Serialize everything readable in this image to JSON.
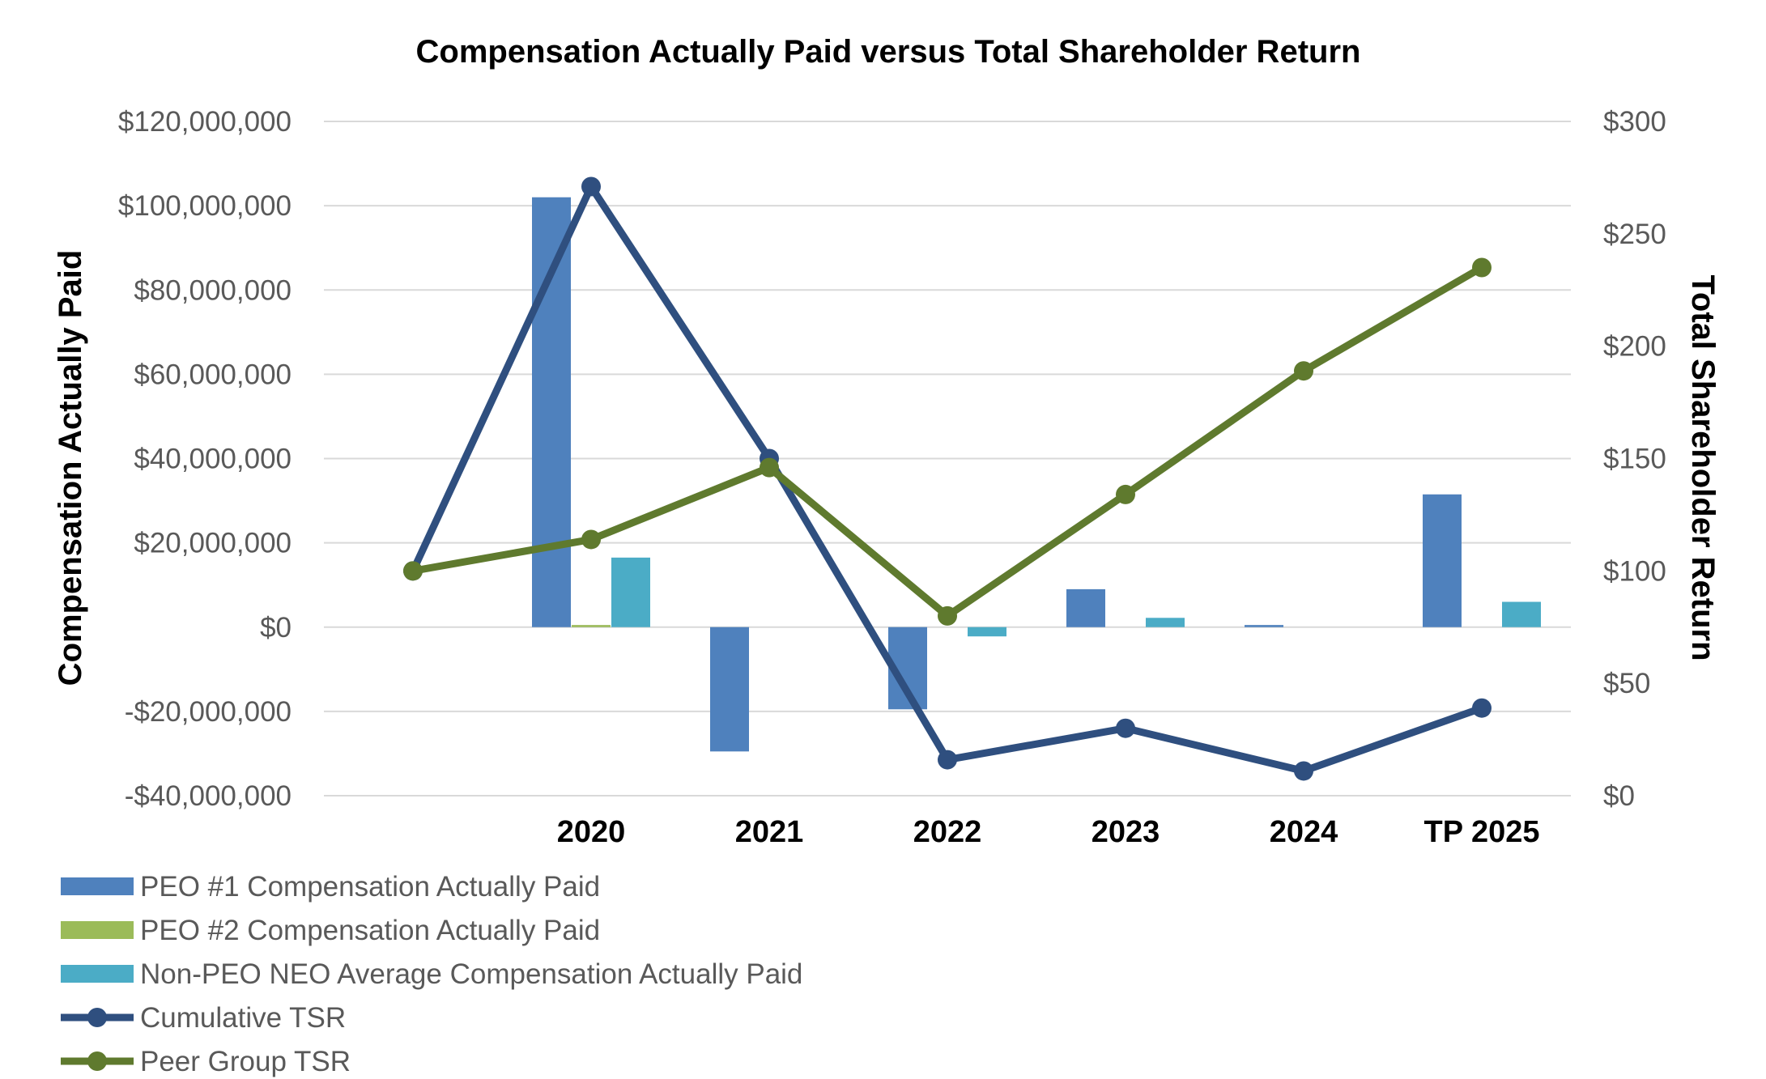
{
  "chart_data": {
    "type": "bar",
    "title": "Compensation Actually Paid versus Total Shareholder Return",
    "ylabel": "Compensation Actually Paid",
    "y2label": "Total Shareholder Return",
    "xlabel": "",
    "categories": [
      "",
      "2020",
      "2021",
      "2022",
      "2023",
      "2024",
      "TP 2025"
    ],
    "ylim": [
      -40000000,
      120000000
    ],
    "y2lim": [
      0,
      300
    ],
    "y_ticks": [
      -40000000,
      -20000000,
      0,
      20000000,
      40000000,
      60000000,
      80000000,
      100000000,
      120000000
    ],
    "y_tick_labels": [
      "-$40,000,000",
      "-$20,000,000",
      "$0",
      "$20,000,000",
      "$40,000,000",
      "$60,000,000",
      "$80,000,000",
      "$100,000,000",
      "$120,000,000"
    ],
    "y2_ticks": [
      0,
      50,
      100,
      150,
      200,
      250,
      300
    ],
    "y2_tick_labels": [
      "$0",
      "$50",
      "$100",
      "$150",
      "$200",
      "$250",
      "$300"
    ],
    "grid": true,
    "legend_position": "bottom-left",
    "series": [
      {
        "name": "PEO #1 Compensation Actually Paid",
        "kind": "bar",
        "axis": "left",
        "color": "#4f81bd",
        "values": [
          null,
          102000000,
          -29500000,
          -19500000,
          9000000,
          500000,
          31500000
        ]
      },
      {
        "name": "PEO #2 Compensation Actually Paid",
        "kind": "bar",
        "axis": "left",
        "color": "#9bbb59",
        "values": [
          null,
          500000,
          null,
          null,
          null,
          null,
          null
        ]
      },
      {
        "name": "Non-PEO NEO Average Compensation Actually Paid",
        "kind": "bar",
        "axis": "left",
        "color": "#4bacc6",
        "values": [
          null,
          16500000,
          null,
          -2200000,
          2200000,
          null,
          6000000
        ]
      },
      {
        "name": "Cumulative TSR",
        "kind": "line",
        "axis": "right",
        "color": "#2f4f7f",
        "values": [
          100,
          271,
          150,
          16,
          30,
          11,
          39
        ]
      },
      {
        "name": "Peer Group TSR",
        "kind": "line",
        "axis": "right",
        "color": "#5f7a2e",
        "values": [
          100,
          114,
          146,
          80,
          134,
          189,
          235
        ]
      }
    ]
  }
}
